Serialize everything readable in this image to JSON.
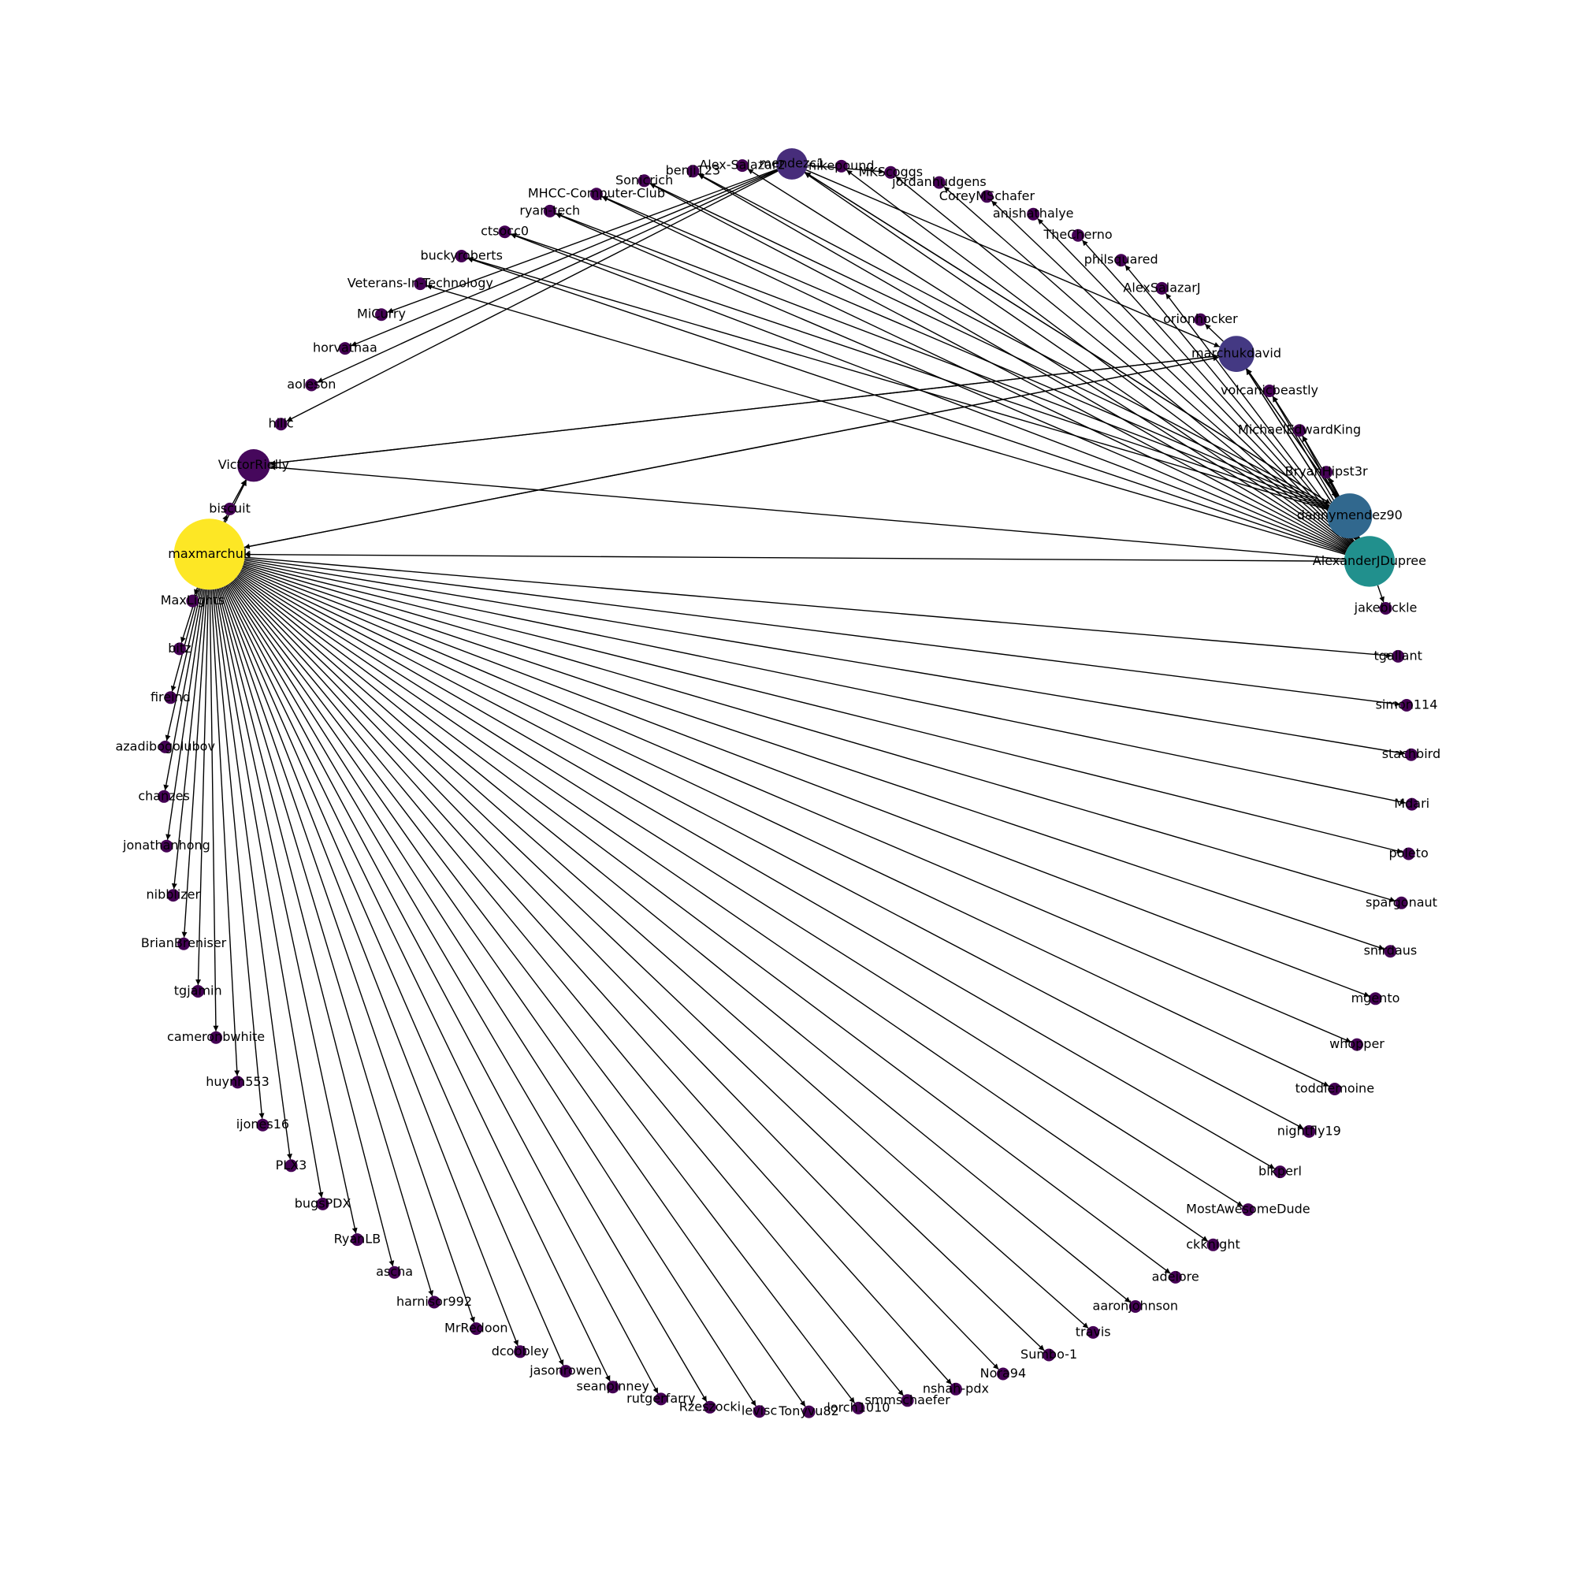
{
  "chart_data": {
    "type": "network-graph",
    "layout": "circular",
    "directed": true,
    "colormap": "viridis",
    "nodes": [
      {
        "id": "maxmarchuk",
        "label": "maxmarchuk",
        "degree": 70,
        "color": "#fde725"
      },
      {
        "id": "MaxLights",
        "label": "MaxLights",
        "degree": 1,
        "color": "#440154"
      },
      {
        "id": "bitz",
        "label": "bitz",
        "degree": 1,
        "color": "#440154"
      },
      {
        "id": "fireind",
        "label": "fireind",
        "degree": 1,
        "color": "#440154"
      },
      {
        "id": "azadibogolubov",
        "label": "azadibogolubov",
        "degree": 1,
        "color": "#440154"
      },
      {
        "id": "chanzes",
        "label": "chanzes",
        "degree": 1,
        "color": "#440154"
      },
      {
        "id": "jonathanhong",
        "label": "jonathanhong",
        "degree": 1,
        "color": "#440154"
      },
      {
        "id": "nibblizer",
        "label": "nibblizer",
        "degree": 1,
        "color": "#440154"
      },
      {
        "id": "BrianBreniser",
        "label": "BrianBreniser",
        "degree": 1,
        "color": "#440154"
      },
      {
        "id": "tgjamin",
        "label": "tgjamin",
        "degree": 1,
        "color": "#440154"
      },
      {
        "id": "cameronbwhite",
        "label": "cameronbwhite",
        "degree": 1,
        "color": "#440154"
      },
      {
        "id": "huynh553",
        "label": "huynh553",
        "degree": 1,
        "color": "#440154"
      },
      {
        "id": "ijones16",
        "label": "ijones16",
        "degree": 1,
        "color": "#440154"
      },
      {
        "id": "PLX3",
        "label": "PLX3",
        "degree": 1,
        "color": "#440154"
      },
      {
        "id": "bugsPDX",
        "label": "bugsPDX",
        "degree": 1,
        "color": "#440154"
      },
      {
        "id": "RyanLB",
        "label": "RyanLB",
        "degree": 1,
        "color": "#440154"
      },
      {
        "id": "ascha",
        "label": "ascha",
        "degree": 1,
        "color": "#440154"
      },
      {
        "id": "harnisor992",
        "label": "harnisor992",
        "degree": 1,
        "color": "#440154"
      },
      {
        "id": "MrRedoon",
        "label": "MrRedoon",
        "degree": 1,
        "color": "#440154"
      },
      {
        "id": "dcobbley",
        "label": "dcobbley",
        "degree": 1,
        "color": "#440154"
      },
      {
        "id": "jasonrowen",
        "label": "jasonrowen",
        "degree": 1,
        "color": "#440154"
      },
      {
        "id": "seanpinney",
        "label": "seanpinney",
        "degree": 1,
        "color": "#440154"
      },
      {
        "id": "rutgerfarry",
        "label": "rutgerfarry",
        "degree": 1,
        "color": "#440154"
      },
      {
        "id": "Rzeszocki",
        "label": "Rzeszocki",
        "degree": 1,
        "color": "#440154"
      },
      {
        "id": "levisc",
        "label": "levisc",
        "degree": 1,
        "color": "#440154"
      },
      {
        "id": "Tonyvu82",
        "label": "Tonyvu82",
        "degree": 1,
        "color": "#440154"
      },
      {
        "id": "lorch1010",
        "label": "lorch1010",
        "degree": 1,
        "color": "#440154"
      },
      {
        "id": "smmschaefer",
        "label": "smmschaefer",
        "degree": 1,
        "color": "#440154"
      },
      {
        "id": "nshah-pdx",
        "label": "nshah-pdx",
        "degree": 1,
        "color": "#440154"
      },
      {
        "id": "Nora94",
        "label": "Nora94",
        "degree": 1,
        "color": "#440154"
      },
      {
        "id": "Sumbo-1",
        "label": "Sumbo-1",
        "degree": 1,
        "color": "#440154"
      },
      {
        "id": "travis",
        "label": "travis",
        "degree": 1,
        "color": "#440154"
      },
      {
        "id": "aaronjohnson",
        "label": "aaronjohnson",
        "degree": 1,
        "color": "#440154"
      },
      {
        "id": "adeiore",
        "label": "adeiore",
        "degree": 1,
        "color": "#440154"
      },
      {
        "id": "ckknight",
        "label": "ckknight",
        "degree": 1,
        "color": "#440154"
      },
      {
        "id": "MostAwesomeDude",
        "label": "MostAwesomeDude",
        "degree": 1,
        "color": "#440154"
      },
      {
        "id": "blkperl",
        "label": "blkperl",
        "degree": 1,
        "color": "#440154"
      },
      {
        "id": "nightfly19",
        "label": "nightfly19",
        "degree": 1,
        "color": "#440154"
      },
      {
        "id": "toddlemoine",
        "label": "toddlemoine",
        "degree": 1,
        "color": "#440154"
      },
      {
        "id": "whopper",
        "label": "whopper",
        "degree": 1,
        "color": "#440154"
      },
      {
        "id": "mgento",
        "label": "mgento",
        "degree": 1,
        "color": "#440154"
      },
      {
        "id": "snirdaus",
        "label": "snirdaus",
        "degree": 1,
        "color": "#440154"
      },
      {
        "id": "spargonaut",
        "label": "spargonaut",
        "degree": 1,
        "color": "#440154"
      },
      {
        "id": "poleto",
        "label": "poleto",
        "degree": 1,
        "color": "#440154"
      },
      {
        "id": "Mdari",
        "label": "Mdari",
        "degree": 1,
        "color": "#440154"
      },
      {
        "id": "stachbird",
        "label": "stachbird",
        "degree": 1,
        "color": "#440154"
      },
      {
        "id": "simon114",
        "label": "simon114",
        "degree": 1,
        "color": "#440154"
      },
      {
        "id": "tgallant",
        "label": "tgallant",
        "degree": 1,
        "color": "#440154"
      },
      {
        "id": "jakebickle",
        "label": "jakebickle",
        "degree": 1,
        "color": "#440154"
      },
      {
        "id": "AlexanderJDupree",
        "label": "AlexanderJDupree",
        "degree": 30,
        "color": "#21908d"
      },
      {
        "id": "dannymendez90",
        "label": "dannymendez90",
        "degree": 22,
        "color": "#31688e"
      },
      {
        "id": "BryanHipst3r",
        "label": "BryanHipst3r",
        "degree": 1,
        "color": "#440154"
      },
      {
        "id": "MichaelEdwardKing",
        "label": "MichaelEdwardKing",
        "degree": 1,
        "color": "#440154"
      },
      {
        "id": "volcanicbeastly",
        "label": "volcanicbeastly",
        "degree": 1,
        "color": "#440154"
      },
      {
        "id": "marchukdavid",
        "label": "marchukdavid",
        "degree": 12,
        "color": "#443983"
      },
      {
        "id": "orionhocker",
        "label": "orionhocker",
        "degree": 1,
        "color": "#440154"
      },
      {
        "id": "AlexSalazarJ",
        "label": "AlexSalazarJ",
        "degree": 1,
        "color": "#440154"
      },
      {
        "id": "philsquared",
        "label": "philsquared",
        "degree": 1,
        "color": "#440154"
      },
      {
        "id": "TheCherno",
        "label": "TheCherno",
        "degree": 1,
        "color": "#440154"
      },
      {
        "id": "anishathalye",
        "label": "anishathalye",
        "degree": 1,
        "color": "#440154"
      },
      {
        "id": "CoreyMSchafer",
        "label": "CoreyMSchafer",
        "degree": 1,
        "color": "#440154"
      },
      {
        "id": "jordanhudgens",
        "label": "jordanhudgens",
        "degree": 1,
        "color": "#440154"
      },
      {
        "id": "MKScoggs",
        "label": "MKScoggs",
        "degree": 1,
        "color": "#440154"
      },
      {
        "id": "nikepound",
        "label": "nikepound",
        "degree": 1,
        "color": "#440154"
      },
      {
        "id": "mendezc1",
        "label": "mendezc1",
        "degree": 8,
        "color": "#472d7b"
      },
      {
        "id": "Alex-Salazar2",
        "label": "Alex-Salazar2",
        "degree": 1,
        "color": "#440154"
      },
      {
        "id": "benji123",
        "label": "benji123",
        "degree": 1,
        "color": "#440154"
      },
      {
        "id": "Sonicrich",
        "label": "Sonicrich",
        "degree": 1,
        "color": "#440154"
      },
      {
        "id": "MHCC-Computer-Club",
        "label": "MHCC-Computer-Club",
        "degree": 1,
        "color": "#440154"
      },
      {
        "id": "ryan-tech",
        "label": "ryan-tech",
        "degree": 1,
        "color": "#440154"
      },
      {
        "id": "ctsocc0",
        "label": "ctsocc0",
        "degree": 1,
        "color": "#440154"
      },
      {
        "id": "buckyroberts",
        "label": "buckyroberts",
        "degree": 1,
        "color": "#440154"
      },
      {
        "id": "Veterans-In-Technology",
        "label": "Veterans-In-Technology",
        "degree": 1,
        "color": "#440154"
      },
      {
        "id": "MiCurry",
        "label": "MiCurry",
        "degree": 1,
        "color": "#440154"
      },
      {
        "id": "horvathaa",
        "label": "horvathaa",
        "degree": 1,
        "color": "#440154"
      },
      {
        "id": "aoleson",
        "label": "aoleson",
        "degree": 1,
        "color": "#440154"
      },
      {
        "id": "hillc",
        "label": "hillc",
        "degree": 1,
        "color": "#440154"
      },
      {
        "id": "VictorRielly",
        "label": "VictorRielly",
        "degree": 9,
        "color": "#46085c"
      },
      {
        "id": "biscuit",
        "label": "biscuit",
        "degree": 1,
        "color": "#440154"
      }
    ],
    "edges": [
      [
        "maxmarchuk",
        "MaxLights"
      ],
      [
        "maxmarchuk",
        "bitz"
      ],
      [
        "maxmarchuk",
        "fireind"
      ],
      [
        "maxmarchuk",
        "azadibogolubov"
      ],
      [
        "maxmarchuk",
        "chanzes"
      ],
      [
        "maxmarchuk",
        "jonathanhong"
      ],
      [
        "maxmarchuk",
        "nibblizer"
      ],
      [
        "maxmarchuk",
        "BrianBreniser"
      ],
      [
        "maxmarchuk",
        "tgjamin"
      ],
      [
        "maxmarchuk",
        "cameronbwhite"
      ],
      [
        "maxmarchuk",
        "huynh553"
      ],
      [
        "maxmarchuk",
        "ijones16"
      ],
      [
        "maxmarchuk",
        "PLX3"
      ],
      [
        "maxmarchuk",
        "bugsPDX"
      ],
      [
        "maxmarchuk",
        "RyanLB"
      ],
      [
        "maxmarchuk",
        "ascha"
      ],
      [
        "maxmarchuk",
        "harnisor992"
      ],
      [
        "maxmarchuk",
        "MrRedoon"
      ],
      [
        "maxmarchuk",
        "dcobbley"
      ],
      [
        "maxmarchuk",
        "jasonrowen"
      ],
      [
        "maxmarchuk",
        "seanpinney"
      ],
      [
        "maxmarchuk",
        "rutgerfarry"
      ],
      [
        "maxmarchuk",
        "Rzeszocki"
      ],
      [
        "maxmarchuk",
        "levisc"
      ],
      [
        "maxmarchuk",
        "Tonyvu82"
      ],
      [
        "maxmarchuk",
        "lorch1010"
      ],
      [
        "maxmarchuk",
        "smmschaefer"
      ],
      [
        "maxmarchuk",
        "nshah-pdx"
      ],
      [
        "maxmarchuk",
        "Nora94"
      ],
      [
        "maxmarchuk",
        "Sumbo-1"
      ],
      [
        "maxmarchuk",
        "travis"
      ],
      [
        "maxmarchuk",
        "aaronjohnson"
      ],
      [
        "maxmarchuk",
        "adeiore"
      ],
      [
        "maxmarchuk",
        "ckknight"
      ],
      [
        "maxmarchuk",
        "MostAwesomeDude"
      ],
      [
        "maxmarchuk",
        "blkperl"
      ],
      [
        "maxmarchuk",
        "nightfly19"
      ],
      [
        "maxmarchuk",
        "toddlemoine"
      ],
      [
        "maxmarchuk",
        "whopper"
      ],
      [
        "maxmarchuk",
        "mgento"
      ],
      [
        "maxmarchuk",
        "snirdaus"
      ],
      [
        "maxmarchuk",
        "spargonaut"
      ],
      [
        "maxmarchuk",
        "poleto"
      ],
      [
        "maxmarchuk",
        "Mdari"
      ],
      [
        "maxmarchuk",
        "stachbird"
      ],
      [
        "maxmarchuk",
        "simon114"
      ],
      [
        "maxmarchuk",
        "tgallant"
      ],
      [
        "maxmarchuk",
        "marchukdavid"
      ],
      [
        "maxmarchuk",
        "VictorRielly"
      ],
      [
        "maxmarchuk",
        "biscuit"
      ],
      [
        "marchukdavid",
        "maxmarchuk"
      ],
      [
        "marchukdavid",
        "VictorRielly"
      ],
      [
        "marchukdavid",
        "orionhocker"
      ],
      [
        "marchukdavid",
        "AlexanderJDupree"
      ],
      [
        "marchukdavid",
        "dannymendez90"
      ],
      [
        "AlexanderJDupree",
        "jakebickle"
      ],
      [
        "AlexanderJDupree",
        "dannymendez90"
      ],
      [
        "AlexanderJDupree",
        "BryanHipst3r"
      ],
      [
        "AlexanderJDupree",
        "MichaelEdwardKing"
      ],
      [
        "AlexanderJDupree",
        "volcanicbeastly"
      ],
      [
        "AlexanderJDupree",
        "marchukdavid"
      ],
      [
        "AlexanderJDupree",
        "AlexSalazarJ"
      ],
      [
        "AlexanderJDupree",
        "philsquared"
      ],
      [
        "AlexanderJDupree",
        "TheCherno"
      ],
      [
        "AlexanderJDupree",
        "anishathalye"
      ],
      [
        "AlexanderJDupree",
        "CoreyMSchafer"
      ],
      [
        "AlexanderJDupree",
        "jordanhudgens"
      ],
      [
        "AlexanderJDupree",
        "MKScoggs"
      ],
      [
        "AlexanderJDupree",
        "nikepound"
      ],
      [
        "AlexanderJDupree",
        "mendezc1"
      ],
      [
        "AlexanderJDupree",
        "Alex-Salazar2"
      ],
      [
        "AlexanderJDupree",
        "benji123"
      ],
      [
        "AlexanderJDupree",
        "Sonicrich"
      ],
      [
        "AlexanderJDupree",
        "MHCC-Computer-Club"
      ],
      [
        "AlexanderJDupree",
        "ryan-tech"
      ],
      [
        "AlexanderJDupree",
        "ctsocc0"
      ],
      [
        "AlexanderJDupree",
        "buckyroberts"
      ],
      [
        "AlexanderJDupree",
        "Veterans-In-Technology"
      ],
      [
        "AlexanderJDupree",
        "VictorRielly"
      ],
      [
        "AlexanderJDupree",
        "maxmarchuk"
      ],
      [
        "dannymendez90",
        "AlexanderJDupree"
      ],
      [
        "dannymendez90",
        "BryanHipst3r"
      ],
      [
        "dannymendez90",
        "MichaelEdwardKing"
      ],
      [
        "dannymendez90",
        "volcanicbeastly"
      ],
      [
        "dannymendez90",
        "marchukdavid"
      ],
      [
        "dannymendez90",
        "mendezc1"
      ],
      [
        "dannymendez90",
        "MHCC-Computer-Club"
      ],
      [
        "dannymendez90",
        "ryan-tech"
      ],
      [
        "dannymendez90",
        "benji123"
      ],
      [
        "dannymendez90",
        "Sonicrich"
      ],
      [
        "dannymendez90",
        "ctsocc0"
      ],
      [
        "dannymendez90",
        "buckyroberts"
      ],
      [
        "mendezc1",
        "dannymendez90"
      ],
      [
        "mendezc1",
        "MiCurry"
      ],
      [
        "mendezc1",
        "horvathaa"
      ],
      [
        "mendezc1",
        "aoleson"
      ],
      [
        "mendezc1",
        "hillc"
      ],
      [
        "mendezc1",
        "MKScoggs"
      ],
      [
        "mendezc1",
        "marchukdavid"
      ],
      [
        "VictorRielly",
        "marchukdavid"
      ],
      [
        "biscuit",
        "VictorRielly"
      ]
    ]
  }
}
